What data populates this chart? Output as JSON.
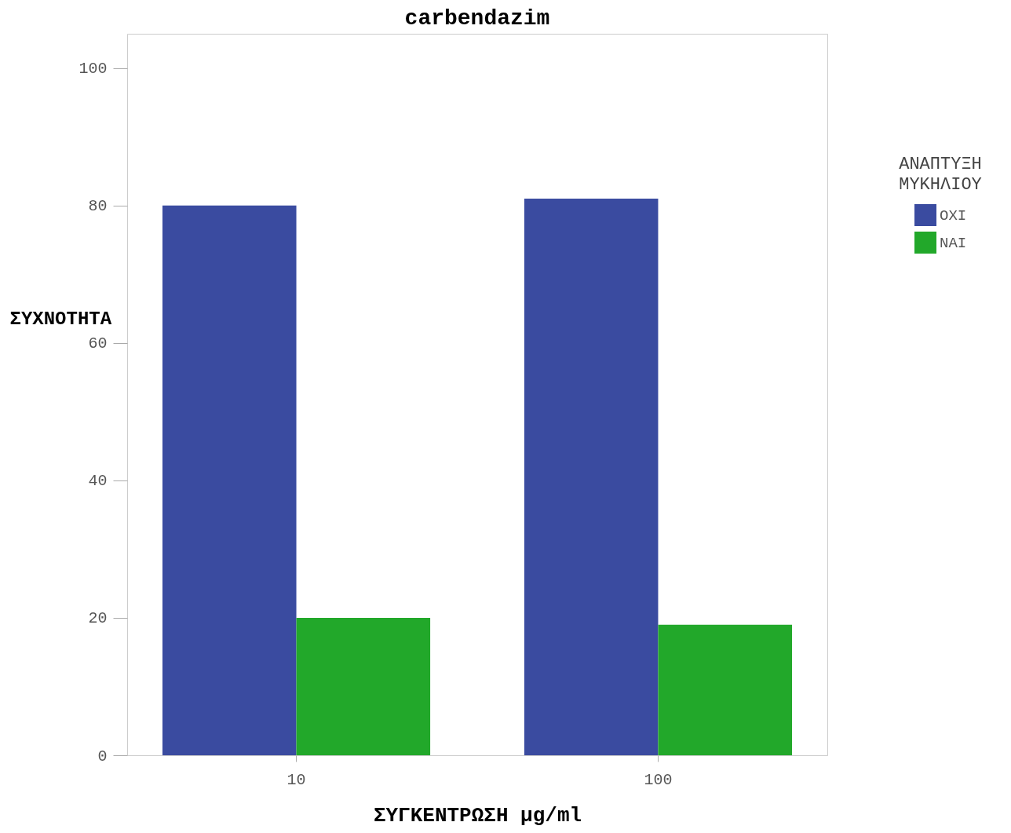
{
  "chart_data": {
    "type": "bar",
    "title": "carbendazim",
    "xlabel": "ΣΥΓΚΕΝΤΡΩΣΗ μg/ml",
    "ylabel": "ΣΥΧΝΟΤΗΤΑ",
    "legend_title": "ΑΝΑΠΤΥΞΗ ΜΥΚΗΛΙΟΥ",
    "categories": [
      "10",
      "100"
    ],
    "series": [
      {
        "name": "ΟΧΙ",
        "color": "#3a4ba0",
        "values": [
          80,
          81
        ]
      },
      {
        "name": "ΝΑΙ",
        "color": "#22a82a",
        "values": [
          20,
          19
        ]
      }
    ],
    "ylim": [
      0,
      105
    ],
    "yticks": [
      0,
      20,
      40,
      60,
      80,
      100
    ],
    "grid": false,
    "legend": "right"
  }
}
